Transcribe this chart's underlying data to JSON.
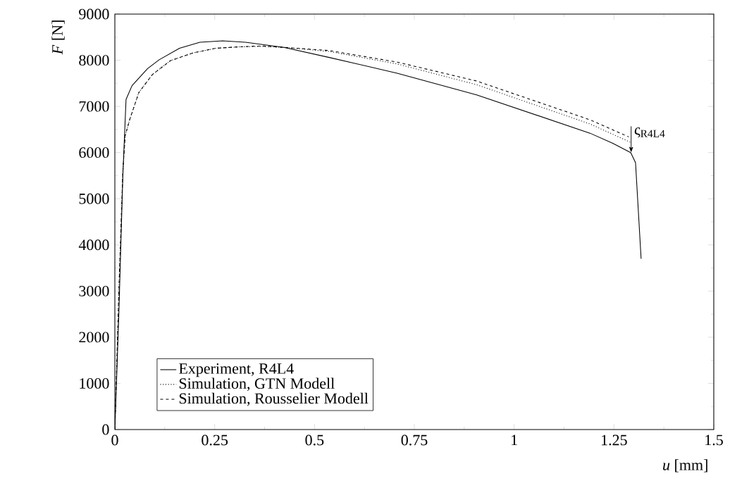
{
  "chart_data": {
    "type": "line",
    "xlabel": "*u* [mm]",
    "ylabel": "*F* [N]",
    "xlim": [
      0,
      1.5
    ],
    "ylim": [
      0,
      9000
    ],
    "xticks": [
      0,
      0.25,
      0.5,
      0.75,
      1,
      1.25,
      1.5
    ],
    "yticks": [
      0,
      1000,
      2000,
      3000,
      4000,
      5000,
      6000,
      7000,
      8000,
      9000
    ],
    "grid": false,
    "legend": "bottom left",
    "marker": "none",
    "annotations": [
      {
        "text": "ς$_{R4L4}$",
        "x": 1.293,
        "y": 6000
      }
    ],
    "series": [
      {
        "name": "Experiment, R4L4",
        "color": "#000000",
        "line_style": "solid",
        "x": [
          0,
          0.01,
          0.02,
          0.028,
          0.043,
          0.082,
          0.111,
          0.162,
          0.213,
          0.27,
          0.327,
          0.423,
          0.537,
          0.707,
          0.906,
          1.19,
          1.247,
          1.292,
          1.304,
          1.318
        ],
        "values": [
          0,
          2500,
          5500,
          7150,
          7450,
          7820,
          8010,
          8260,
          8390,
          8420,
          8390,
          8280,
          8060,
          7720,
          7250,
          6420,
          6200,
          6000,
          5780,
          3700
        ]
      },
      {
        "name": "Simulation, GTN Modell",
        "color": "#000000",
        "line_style": "dotted",
        "x": [
          0,
          0.01,
          0.02,
          0.026,
          0.037,
          0.06,
          0.094,
          0.139,
          0.196,
          0.253,
          0.31,
          0.366,
          0.423,
          0.537,
          0.707,
          0.906,
          1.19,
          1.292
        ],
        "values": [
          0,
          3000,
          5600,
          6370,
          6710,
          7300,
          7690,
          7990,
          8160,
          8260,
          8290,
          8300,
          8280,
          8190,
          7920,
          7470,
          6620,
          6220
        ]
      },
      {
        "name": "Simulation, Rousselier Modell",
        "color": "#000000",
        "line_style": "dashed",
        "x": [
          0,
          0.01,
          0.02,
          0.026,
          0.037,
          0.06,
          0.094,
          0.139,
          0.196,
          0.253,
          0.31,
          0.366,
          0.423,
          0.537,
          0.707,
          0.906,
          1.19,
          1.287
        ],
        "values": [
          0,
          3000,
          5600,
          6370,
          6710,
          7300,
          7690,
          7990,
          8160,
          8260,
          8290,
          8310,
          8280,
          8210,
          7960,
          7550,
          6710,
          6340
        ]
      }
    ]
  }
}
